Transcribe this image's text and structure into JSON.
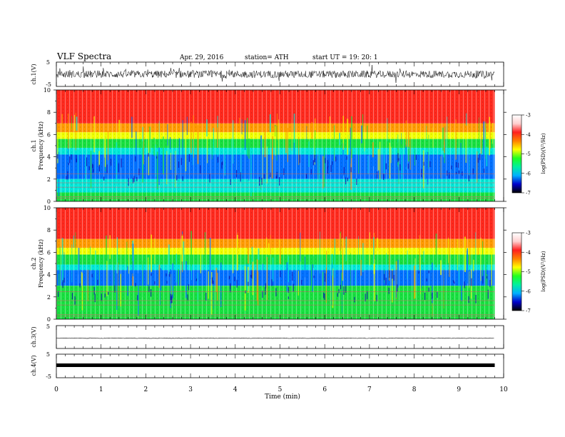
{
  "header": {
    "title": "VLF  Spectra",
    "date": "Apr. 29, 2016",
    "station": "station= ATH",
    "start": "start  UT  =    19: 20: 1"
  },
  "colors": {
    "red": "#ff2a1e",
    "orange": "#ff9a00",
    "yellow": "#f0ff00",
    "green": "#18e040",
    "cyan": "#00e8d8",
    "blue": "#0070ff",
    "navy": "#1010b0",
    "colorbar": [
      "#000000",
      "#0000cc",
      "#00b0ff",
      "#00f0a0",
      "#20ff20",
      "#ffff00",
      "#ff8000",
      "#ff2020",
      "#ffd0d0",
      "#ffffff"
    ]
  },
  "chart_data": [
    {
      "type": "line",
      "name": "ch1-waveform",
      "ylabel": "ch.1(V)",
      "ylim": [
        -5,
        5
      ],
      "yticks": [
        "5",
        "-5"
      ],
      "description_values": "noisy waveform, amplitude mostly within about -2 to +2 V"
    },
    {
      "type": "heatmap",
      "name": "ch1-spectrogram",
      "ylabel_top": "ch.1",
      "ylabel": "Frequency  (kHz)",
      "ylim": [
        0,
        10
      ],
      "yticks": [
        "0",
        "2",
        "4",
        "6",
        "8",
        "10"
      ],
      "bands_khz": [
        {
          "from": 7.0,
          "to": 10.0,
          "level": "red"
        },
        {
          "from": 6.2,
          "to": 7.0,
          "level": "orange"
        },
        {
          "from": 5.6,
          "to": 6.2,
          "level": "yellow"
        },
        {
          "from": 4.8,
          "to": 5.6,
          "level": "green"
        },
        {
          "from": 4.2,
          "to": 4.8,
          "level": "cyan"
        },
        {
          "from": 2.0,
          "to": 4.2,
          "level": "blue"
        },
        {
          "from": 0.8,
          "to": 2.0,
          "level": "cyan"
        },
        {
          "from": 0.0,
          "to": 0.8,
          "level": "green"
        }
      ],
      "colorbar": {
        "label": "log(PSD)(V²/Hz)",
        "range": [
          -7,
          -3
        ],
        "ticks": [
          "-3",
          "-4",
          "-5",
          "-6",
          "-7"
        ]
      }
    },
    {
      "type": "heatmap",
      "name": "ch2-spectrogram",
      "ylabel_top": "ch.2",
      "ylabel": "Frequency  (kHz)",
      "ylim": [
        0,
        10
      ],
      "yticks": [
        "0",
        "2",
        "4",
        "6",
        "8",
        "10"
      ],
      "bands_khz": [
        {
          "from": 7.2,
          "to": 10.0,
          "level": "red"
        },
        {
          "from": 6.4,
          "to": 7.2,
          "level": "orange"
        },
        {
          "from": 5.8,
          "to": 6.4,
          "level": "yellow"
        },
        {
          "from": 4.9,
          "to": 5.8,
          "level": "green"
        },
        {
          "from": 4.4,
          "to": 4.9,
          "level": "cyan"
        },
        {
          "from": 3.0,
          "to": 4.4,
          "level": "blue"
        },
        {
          "from": 0.0,
          "to": 3.0,
          "level": "green"
        }
      ],
      "colorbar": {
        "label": "log(PSD)(V²/Hz)",
        "range": [
          -7,
          -3
        ],
        "ticks": [
          "-3",
          "-4",
          "-5",
          "-6",
          "-7"
        ]
      }
    },
    {
      "type": "line",
      "name": "ch3-waveform",
      "ylabel": "ch.3(V)",
      "ylim": [
        -5,
        5
      ],
      "yticks": [
        "5"
      ],
      "description_values": "nearly flat at about -0.5 V"
    },
    {
      "type": "line",
      "name": "ch4-waveform",
      "ylabel": "ch.4(V)",
      "ylim": [
        -5,
        5
      ],
      "yticks": [
        "5",
        "-5"
      ],
      "description_values": "thick flat trace near 0 V"
    }
  ],
  "x_axis": {
    "label": "Time  (min)",
    "range": [
      0,
      10
    ],
    "ticks": [
      "0",
      "1",
      "2",
      "3",
      "4",
      "5",
      "6",
      "7",
      "8",
      "9",
      "10"
    ],
    "data_end_min": 9.8
  }
}
